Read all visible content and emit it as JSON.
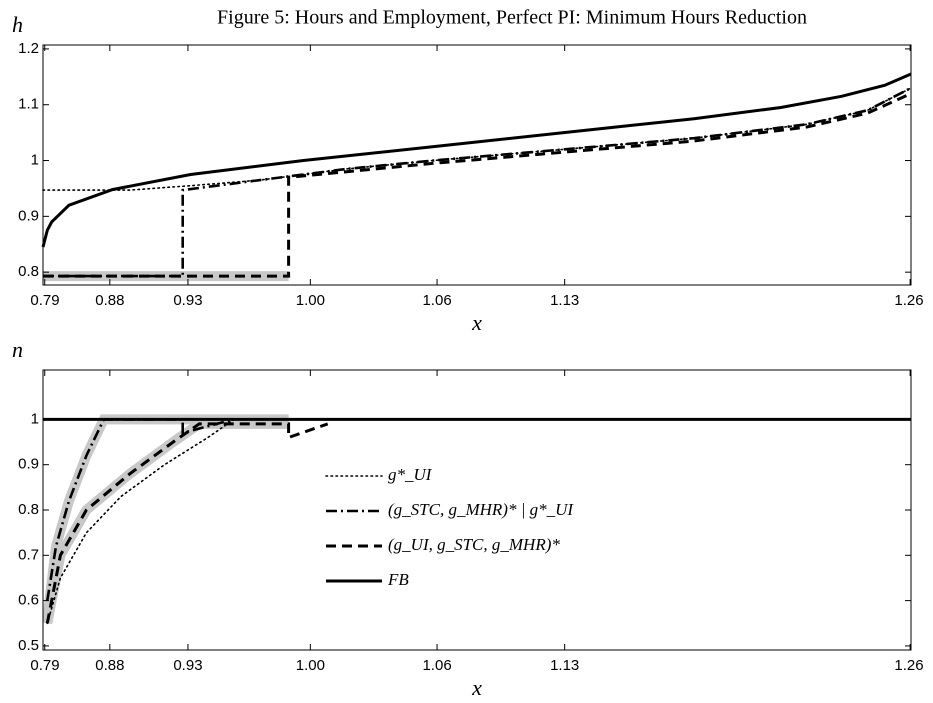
{
  "chart_data": [
    {
      "type": "line",
      "title": "Figure 5: Hours and Employment, Perfect PI: Minimum Hours Reduction",
      "ylabel": "h",
      "xlabel": "x",
      "xlim": [
        0,
        1
      ],
      "ylim": [
        0.777,
        1.207
      ],
      "xticks": [
        {
          "value": 0.002,
          "label": "0.79"
        },
        {
          "value": 0.077,
          "label": "0.88"
        },
        {
          "value": 0.167,
          "label": "0.93"
        },
        {
          "value": 0.308,
          "label": "1.00"
        },
        {
          "value": 0.454,
          "label": "1.06"
        },
        {
          "value": 0.601,
          "label": "1.13"
        },
        {
          "value": 0.999,
          "label": "1.26"
        }
      ],
      "yticks": [
        0.8,
        0.9,
        1,
        1.1,
        1.2
      ],
      "series": [
        {
          "style": "band",
          "color": "#c8c8c8",
          "x": [
            0,
            0.283
          ],
          "values": [
            0.793,
            0.793
          ]
        },
        {
          "style": "solid",
          "color": "#000000",
          "x": [
            0,
            0.005,
            0.01,
            0.03,
            0.08,
            0.17,
            0.3,
            0.45,
            0.6,
            0.75,
            0.85,
            0.92,
            0.97,
            1.0
          ],
          "values": [
            0.845,
            0.875,
            0.89,
            0.92,
            0.948,
            0.975,
            1.0,
            1.025,
            1.05,
            1.075,
            1.095,
            1.115,
            1.135,
            1.155
          ]
        },
        {
          "style": "dot",
          "color": "#000000",
          "x": [
            0,
            0.1,
            0.17,
            0.25,
            0.35,
            0.45,
            0.6,
            0.75,
            0.88,
            0.95,
            1.0
          ],
          "values": [
            0.947,
            0.947,
            0.955,
            0.965,
            0.985,
            1.0,
            1.02,
            1.04,
            1.065,
            1.09,
            1.13
          ]
        },
        {
          "style": "dashdot",
          "color": "#000000",
          "x": [
            0,
            0.161,
            0.161,
            0.25,
            0.35,
            0.45,
            0.6,
            0.75,
            0.88,
            0.95,
            1.0
          ],
          "values": [
            0.793,
            0.793,
            0.947,
            0.965,
            0.985,
            1.0,
            1.02,
            1.04,
            1.065,
            1.09,
            1.13
          ]
        },
        {
          "style": "dash",
          "color": "#000000",
          "x": [
            0,
            0.283,
            0.283,
            0.35,
            0.45,
            0.6,
            0.75,
            0.88,
            0.95,
            1.0
          ],
          "values": [
            0.793,
            0.793,
            0.97,
            0.98,
            0.995,
            1.015,
            1.035,
            1.06,
            1.085,
            1.12
          ]
        }
      ]
    },
    {
      "type": "line",
      "ylabel": "n",
      "xlabel": "x",
      "xlim": [
        0,
        1
      ],
      "ylim": [
        0.491,
        1.109
      ],
      "xticks": [
        {
          "value": 0.002,
          "label": "0.79"
        },
        {
          "value": 0.077,
          "label": "0.88"
        },
        {
          "value": 0.167,
          "label": "0.93"
        },
        {
          "value": 0.308,
          "label": "1.00"
        },
        {
          "value": 0.454,
          "label": "1.06"
        },
        {
          "value": 0.601,
          "label": "1.13"
        },
        {
          "value": 0.999,
          "label": "1.26"
        }
      ],
      "yticks": [
        0.5,
        0.6,
        0.7,
        0.8,
        0.9,
        1
      ],
      "series": [
        {
          "style": "band",
          "color": "#c8c8c8",
          "x": [
            0.005,
            0.015,
            0.03,
            0.05,
            0.07,
            0.283
          ],
          "values": [
            0.56,
            0.72,
            0.82,
            0.92,
            1.0,
            1.0
          ]
        },
        {
          "style": "band",
          "color": "#c8c8c8",
          "x": [
            0.005,
            0.02,
            0.05,
            0.1,
            0.15,
            0.18,
            0.283
          ],
          "values": [
            0.55,
            0.7,
            0.8,
            0.88,
            0.95,
            0.99,
            0.99
          ]
        },
        {
          "name": "g*_UI",
          "style": "dot",
          "color": "#000000",
          "x": [
            0.005,
            0.02,
            0.05,
            0.09,
            0.14,
            0.19,
            0.22
          ],
          "values": [
            0.55,
            0.65,
            0.75,
            0.83,
            0.9,
            0.96,
            1.0
          ]
        },
        {
          "name": "(g_STC, g_MHR)* | g*_UI",
          "style": "dashdot",
          "color": "#000000",
          "x": [
            0.005,
            0.015,
            0.03,
            0.05,
            0.07,
            0.161,
            0.161,
            0.2,
            0.22
          ],
          "values": [
            0.6,
            0.72,
            0.82,
            0.92,
            1.0,
            1.0,
            0.97,
            0.99,
            1.0
          ]
        },
        {
          "name": "(g_UI, g_STC, g_MHR)*",
          "style": "dash",
          "color": "#000000",
          "x": [
            0.005,
            0.02,
            0.05,
            0.1,
            0.15,
            0.18,
            0.283,
            0.283,
            0.328
          ],
          "values": [
            0.55,
            0.7,
            0.8,
            0.88,
            0.95,
            0.99,
            0.99,
            0.96,
            0.99
          ]
        },
        {
          "name": "FB",
          "style": "solid",
          "color": "#000000",
          "x": [
            0,
            1
          ],
          "values": [
            1,
            1
          ]
        }
      ]
    }
  ]
}
